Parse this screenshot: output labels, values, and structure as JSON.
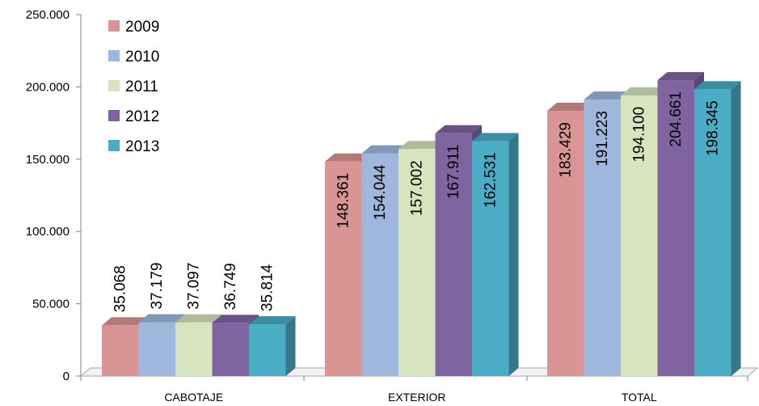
{
  "chart_data": {
    "type": "bar",
    "categories": [
      "CABOTAJE",
      "EXTERIOR",
      "TOTAL"
    ],
    "series": [
      {
        "name": "2009",
        "values": [
          35068,
          148361,
          183429
        ],
        "labels": [
          "35.068",
          "148.361",
          "183.429"
        ],
        "color": "#d89594"
      },
      {
        "name": "2010",
        "values": [
          37179,
          154044,
          191223
        ],
        "labels": [
          "37.179",
          "154.044",
          "191.223"
        ],
        "color": "#9fb7dd"
      },
      {
        "name": "2011",
        "values": [
          37097,
          157002,
          194100
        ],
        "labels": [
          "37.097",
          "157.002",
          "194.100"
        ],
        "color": "#d7e4bd"
      },
      {
        "name": "2012",
        "values": [
          36749,
          167911,
          204661
        ],
        "labels": [
          "36.749",
          "167.911",
          "204.661"
        ],
        "color": "#8064a2"
      },
      {
        "name": "2013",
        "values": [
          35814,
          162531,
          198345
        ],
        "labels": [
          "35.814",
          "162.531",
          "198.345"
        ],
        "color": "#4bacc6"
      }
    ],
    "yticks": [
      0,
      50000,
      100000,
      150000,
      200000,
      250000
    ],
    "ytick_labels": [
      "0",
      "50.000",
      "100.000",
      "150.000",
      "200.000",
      "250.000"
    ],
    "ylim": [
      0,
      250000
    ],
    "legend_position": "top-left",
    "grid": false
  }
}
